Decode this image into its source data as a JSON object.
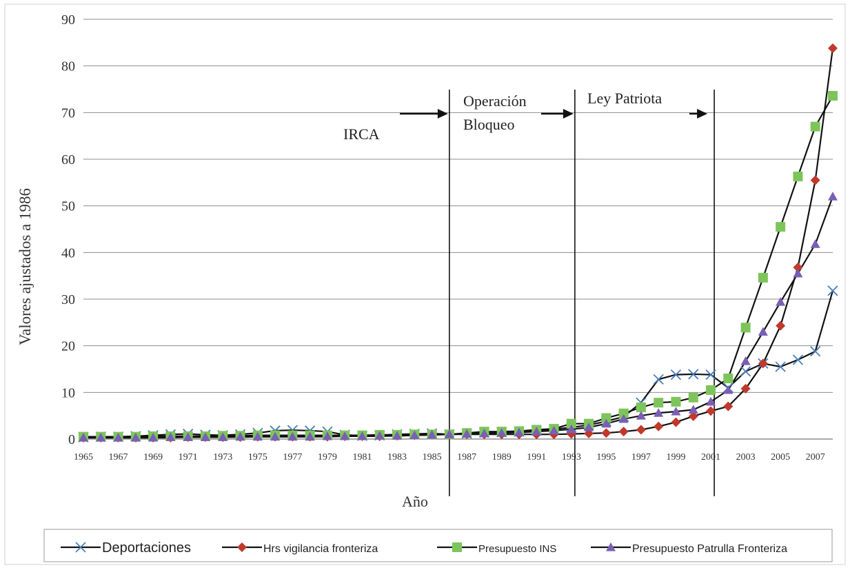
{
  "chart_data": {
    "type": "line",
    "title": "",
    "xlabel": "Año",
    "ylabel": "Valores ajustados a 1986",
    "ylim": [
      0,
      90
    ],
    "y_ticks": [
      0,
      10,
      20,
      30,
      40,
      50,
      60,
      70,
      80,
      90
    ],
    "x_range": [
      1965,
      2008
    ],
    "x_tick_labels": [
      "1965",
      "1967",
      "1969",
      "1971",
      "1973",
      "1975",
      "1977",
      "1979",
      "1981",
      "1983",
      "1985",
      "1987",
      "1989",
      "1991",
      "1993",
      "1995",
      "1997",
      "1999",
      "2001",
      "2003",
      "2005",
      "2007"
    ],
    "grid": "horizontal",
    "legend_position": "bottom",
    "annotations": [
      {
        "label": "IRCA",
        "year": 1986
      },
      {
        "label": "Operación Bloqueo",
        "year": 1993.2
      },
      {
        "label": "Ley Patriota",
        "year": 2001.2
      }
    ],
    "years": [
      1965,
      1966,
      1967,
      1968,
      1969,
      1970,
      1971,
      1972,
      1973,
      1974,
      1975,
      1976,
      1977,
      1978,
      1979,
      1980,
      1981,
      1982,
      1983,
      1984,
      1985,
      1986,
      1987,
      1988,
      1989,
      1990,
      1991,
      1992,
      1993,
      1994,
      1995,
      1996,
      1997,
      1998,
      1999,
      2000,
      2001,
      2002,
      2003,
      2004,
      2005,
      2006,
      2007,
      2008
    ],
    "series": [
      {
        "name": "Deportaciones",
        "color": "#4a7ebb",
        "marker": "x",
        "values": [
          0.4,
          0.5,
          0.5,
          0.6,
          0.8,
          1.0,
          1.1,
          0.9,
          0.8,
          1.0,
          1.3,
          1.8,
          1.9,
          1.8,
          1.6,
          0.9,
          0.7,
          0.8,
          1.0,
          1.1,
          1.2,
          1.0,
          1.2,
          1.4,
          1.5,
          1.6,
          1.8,
          2.1,
          2.5,
          3.0,
          3.8,
          4.8,
          7.8,
          12.8,
          13.8,
          13.9,
          13.8,
          11.0,
          14.5,
          16.2,
          15.5,
          17.0,
          18.8,
          31.8
        ]
      },
      {
        "name": "Hrs vigilancia fronteriza",
        "color": "#c0392b",
        "marker": "diamond",
        "values": [
          0.3,
          0.3,
          0.3,
          0.3,
          0.3,
          0.3,
          0.4,
          0.4,
          0.4,
          0.4,
          0.5,
          0.5,
          0.5,
          0.5,
          0.5,
          0.6,
          0.6,
          0.6,
          0.7,
          0.8,
          0.9,
          1.0,
          1.0,
          1.0,
          1.0,
          1.0,
          1.0,
          1.0,
          1.1,
          1.2,
          1.3,
          1.6,
          2.0,
          2.7,
          3.6,
          4.9,
          6.0,
          7.0,
          10.8,
          16.2,
          24.3,
          36.8,
          55.5,
          83.8
        ]
      },
      {
        "name": "Presupuesto INS",
        "color": "#7dc55b",
        "marker": "square",
        "values": [
          0.5,
          0.5,
          0.5,
          0.5,
          0.6,
          0.6,
          0.6,
          0.6,
          0.7,
          0.7,
          0.8,
          0.8,
          0.8,
          0.8,
          0.8,
          0.8,
          0.8,
          0.9,
          0.9,
          1.0,
          1.0,
          1.0,
          1.3,
          1.6,
          1.6,
          1.7,
          2.0,
          2.2,
          3.3,
          3.3,
          4.5,
          5.5,
          6.8,
          7.8,
          8.0,
          8.9,
          10.5,
          13.0,
          23.9,
          34.6,
          45.5,
          56.3,
          67.0,
          73.6
        ]
      },
      {
        "name": "Presupuesto Patrulla Fronteriza",
        "color": "#7a5fb5",
        "marker": "triangle",
        "values": [
          0.3,
          0.3,
          0.3,
          0.3,
          0.3,
          0.4,
          0.4,
          0.4,
          0.4,
          0.5,
          0.5,
          0.5,
          0.5,
          0.5,
          0.6,
          0.6,
          0.6,
          0.7,
          0.7,
          0.8,
          0.9,
          1.0,
          1.1,
          1.2,
          1.3,
          1.4,
          1.6,
          1.8,
          2.1,
          2.5,
          3.3,
          4.3,
          5.0,
          5.6,
          5.9,
          6.3,
          8.0,
          10.5,
          16.7,
          23.0,
          29.4,
          35.5,
          41.8,
          52.0
        ]
      }
    ]
  }
}
